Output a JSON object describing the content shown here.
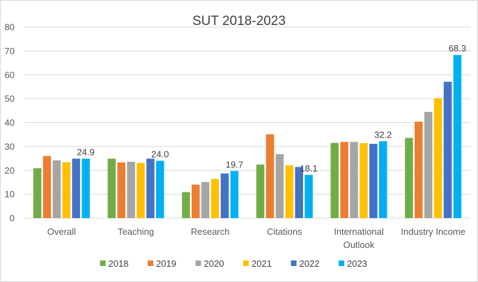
{
  "chart_data": {
    "type": "bar",
    "title": "SUT 2018-2023",
    "xlabel": "",
    "ylabel": "",
    "ylim": [
      0,
      80
    ],
    "yticks": [
      0,
      10,
      20,
      30,
      40,
      50,
      60,
      70,
      80
    ],
    "grid": true,
    "legend_position": "bottom",
    "categories": [
      "Overall",
      "Teaching",
      "Research",
      "Citations",
      "International Outlook",
      "Industry Income"
    ],
    "category_lines": [
      [
        "Overall"
      ],
      [
        "Teaching"
      ],
      [
        "Research"
      ],
      [
        "Citations"
      ],
      [
        "International",
        "Outlook"
      ],
      [
        "Industry Income"
      ]
    ],
    "series": [
      {
        "name": "2018",
        "color": "#70ad47",
        "values": [
          20.9,
          24.9,
          10.9,
          22.4,
          31.5,
          33.6
        ]
      },
      {
        "name": "2019",
        "color": "#ed7d31",
        "values": [
          26.0,
          23.3,
          14.0,
          35.1,
          31.9,
          40.4
        ]
      },
      {
        "name": "2020",
        "color": "#a5a5a5",
        "values": [
          24.2,
          23.6,
          15.1,
          26.8,
          31.9,
          44.5
        ]
      },
      {
        "name": "2021",
        "color": "#ffc000",
        "values": [
          23.4,
          23.1,
          16.4,
          22.1,
          31.4,
          50.2
        ]
      },
      {
        "name": "2022",
        "color": "#4472c4",
        "values": [
          24.9,
          24.9,
          18.7,
          21.4,
          31.1,
          57.1
        ]
      },
      {
        "name": "2023",
        "color": "#00b0f0",
        "values": [
          24.9,
          24.0,
          19.7,
          18.1,
          32.2,
          68.3
        ]
      }
    ],
    "data_labels": [
      {
        "series": "2023",
        "category": "Overall",
        "text": "24.9"
      },
      {
        "series": "2023",
        "category": "Teaching",
        "text": "24.0"
      },
      {
        "series": "2023",
        "category": "Research",
        "text": "19.7"
      },
      {
        "series": "2023",
        "category": "Citations",
        "text": "18.1"
      },
      {
        "series": "2023",
        "category": "International Outlook",
        "text": "32.2"
      },
      {
        "series": "2023",
        "category": "Industry Income",
        "text": "68.3"
      }
    ]
  }
}
